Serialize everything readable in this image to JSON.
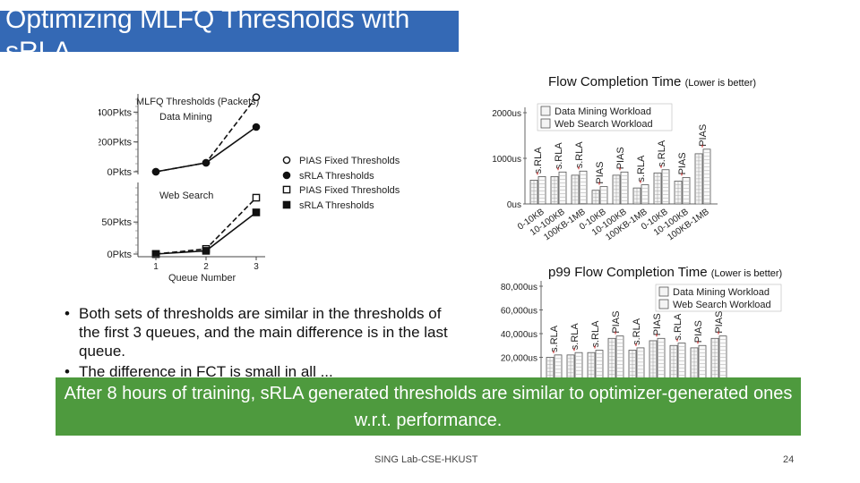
{
  "slide": {
    "title": "Optimizing MLFQ Thresholds with sRLA",
    "fct_title": "Flow Completion Time",
    "fct_note": "(Lower is better)",
    "p99_title": "p99 Flow Completion Time",
    "p99_note": "(Lower is better)",
    "bullets": [
      "Both sets of thresholds are similar in the thresholds of the first 3 queues, and the main difference is in the last queue.",
      "The difference in FCT is small in all ..."
    ],
    "conclusion": "After 8 hours of training, sRLA generated thresholds are similar to optimizer-generated ones w.r.t. performance.",
    "footer_center": "SING Lab-CSE-HKUST",
    "page_number": "24"
  },
  "colors": {
    "title_bg": "#3469b5",
    "banner_bg": "#4e9a3e",
    "pias_label": "#d01a1a"
  },
  "chart_data": [
    {
      "type": "line",
      "title": "MLFQ Thresholds (Packets)",
      "xlabel": "Queue Number",
      "x": [
        1,
        2,
        3
      ],
      "panels": [
        {
          "name": "Data Mining",
          "yticks": [
            "400Pkts",
            "200Pkts",
            "0Pkts"
          ],
          "ytick_values": [
            400,
            200,
            0
          ],
          "ylim": [
            0,
            450
          ],
          "series": [
            {
              "name": "PIAS Fixed Thresholds",
              "marker": "open-circle",
              "dash": true,
              "values": [
                0,
                60,
                500
              ]
            },
            {
              "name": "sRLA Thresholds",
              "marker": "filled-circle",
              "dash": false,
              "values": [
                0,
                60,
                300
              ]
            }
          ]
        },
        {
          "name": "Web Search",
          "yticks": [
            "50Pkts",
            "0Pkts"
          ],
          "ytick_values": [
            50,
            0
          ],
          "ylim": [
            0,
            95
          ],
          "series": [
            {
              "name": "PIAS Fixed Thresholds",
              "marker": "open-square",
              "dash": true,
              "values": [
                0,
                8,
                88
              ]
            },
            {
              "name": "sRLA Thresholds",
              "marker": "filled-square",
              "dash": false,
              "values": [
                0,
                5,
                65
              ]
            }
          ]
        }
      ]
    },
    {
      "type": "bar",
      "title": "Flow Completion Time (Lower is better)",
      "yticks": [
        "2000us",
        "1000us",
        "0us"
      ],
      "ytick_values": [
        2000,
        1000,
        0
      ],
      "ylim": [
        0,
        2000
      ],
      "legend": [
        "Data Mining Workload",
        "Web Search Workload"
      ],
      "categories": [
        "0-10KB",
        "10-100KB",
        "100KB-1MB",
        "0-10KB",
        "10-100KB",
        "100KB-1MB",
        "0-10KB",
        "10-100KB",
        "100KB-1MB"
      ],
      "bars": [
        {
          "label": "s.RLA",
          "values": [
            520,
            600
          ]
        },
        {
          "label": "s.RLA",
          "values": [
            600,
            700
          ]
        },
        {
          "label": "s.RLA",
          "values": [
            630,
            720
          ]
        },
        {
          "label": "PIAS",
          "values": [
            300,
            380
          ]
        },
        {
          "label": "PIAS",
          "values": [
            630,
            700
          ]
        },
        {
          "label": "s.RLA",
          "values": [
            350,
            420
          ]
        },
        {
          "label": "s.RLA",
          "values": [
            680,
            750
          ]
        },
        {
          "label": "PIAS",
          "values": [
            500,
            580
          ]
        },
        {
          "label": "PIAS",
          "values": [
            1100,
            1200
          ]
        }
      ]
    },
    {
      "type": "bar",
      "title": "p99 Flow Completion Time (Lower is better)",
      "yticks": [
        "80,000us",
        "60,000us",
        "40,000us",
        "20,000us"
      ],
      "ytick_values": [
        80000,
        60000,
        40000,
        20000
      ],
      "ylim": [
        0,
        80000
      ],
      "legend": [
        "Data Mining Workload",
        "Web Search Workload"
      ],
      "bars": [
        {
          "label": "s.RLA",
          "values": [
            20000,
            22000
          ]
        },
        {
          "label": "s.RLA",
          "values": [
            22000,
            24000
          ]
        },
        {
          "label": "s.RLA",
          "values": [
            24000,
            26000
          ]
        },
        {
          "label": "PIAS",
          "values": [
            36000,
            38000
          ]
        },
        {
          "label": "s.RLA",
          "values": [
            26000,
            28000
          ]
        },
        {
          "label": "PIAS",
          "values": [
            34000,
            36000
          ]
        },
        {
          "label": "s.RLA",
          "values": [
            30000,
            32000
          ]
        },
        {
          "label": "PIAS",
          "values": [
            28000,
            30000
          ]
        },
        {
          "label": "PIAS",
          "values": [
            36000,
            38000
          ]
        }
      ]
    }
  ]
}
